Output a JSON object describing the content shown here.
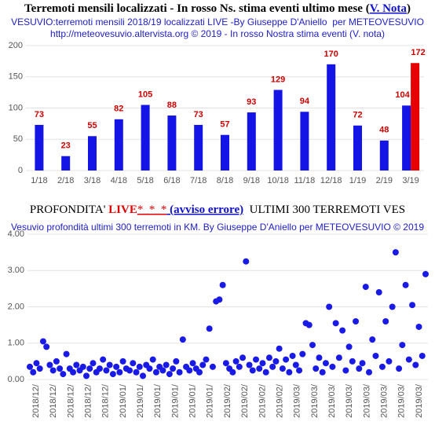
{
  "chart_data": [
    {
      "type": "bar",
      "title": [
        "Terremoti mensili localizzati - In rosso Ns. stima eventi ultimo mese (",
        "V. Nota",
        ")"
      ],
      "subtitle": [
        "VESUVIO:terremoti mensili 2018/19 localizzati LIVE -By Giuseppe D'Aniello  per METEOVESUVIO",
        "http://meteovesuvio.altervista.org © 2019 - In rosso Nostra stima eventi (V. nota)"
      ],
      "categories": [
        "1/18",
        "2/18",
        "3/18",
        "4/18",
        "5/18",
        "6/18",
        "7/18",
        "8/18",
        "9/18",
        "10/18",
        "11/18",
        "12/18",
        "1/19",
        "2/19",
        "3/19"
      ],
      "series": [
        {
          "color": "#1414e6",
          "values": [
            73,
            23,
            55,
            82,
            105,
            88,
            73,
            57,
            93,
            129,
            94,
            170,
            72,
            48,
            104
          ]
        },
        {
          "color": "#e60000",
          "values": [
            null,
            null,
            null,
            null,
            null,
            null,
            null,
            null,
            null,
            null,
            null,
            null,
            null,
            null,
            172
          ]
        }
      ],
      "label_color": "#cc0000",
      "ylim": [
        0,
        200
      ],
      "yticks": [
        0,
        50,
        100,
        150,
        200
      ],
      "grid": true
    },
    {
      "type": "scatter",
      "title": [
        "PROFONDITA' ",
        "LIVE",
        "*_*_*",
        " (avviso errore)",
        "  ULTIMI 300 TERREMOTI VES"
      ],
      "subtitle": [
        "Vesuvio profondità ultimi 300 terremoti in KM. By Giuseppe D'Aniello per METEOVESUVIO © 2019"
      ],
      "categories": [
        "2018/12/",
        "2018/12/",
        "2018/12/",
        "2018/12/",
        "2018/12/",
        "2019/01/",
        "2019/01/",
        "2019/01/",
        "2019/01/",
        "2019/01/",
        "2019/01/",
        "2019/02/",
        "2019/02/",
        "2019/02/",
        "2019/02/",
        "2019/03/",
        "2019/03/",
        "2019/03/",
        "2019/03/",
        "2019/03/",
        "2019/03/",
        "2019/03/",
        "2019/03/"
      ],
      "color": "#1a1ae6",
      "values": [
        0.35,
        0.2,
        0.45,
        0.3,
        1.05,
        0.9,
        0.4,
        0.25,
        0.5,
        0.3,
        0.15,
        0.7,
        0.3,
        0.2,
        0.4,
        0.25,
        0.35,
        0.1,
        0.3,
        0.45,
        0.2,
        0.3,
        0.55,
        0.25,
        0.4,
        0.15,
        0.35,
        0.2,
        0.5,
        0.3,
        0.25,
        0.45,
        0.2,
        0.35,
        0.1,
        0.4,
        0.3,
        0.55,
        0.2,
        0.35,
        0.25,
        0.4,
        0.15,
        0.3,
        0.5,
        0.2,
        1.1,
        0.35,
        0.25,
        0.45,
        0.3,
        0.2,
        0.4,
        0.55,
        1.4,
        0.35,
        2.15,
        2.2,
        2.6,
        0.45,
        0.3,
        0.2,
        0.5,
        0.35,
        0.6,
        3.25,
        0.4,
        0.25,
        0.55,
        0.3,
        0.45,
        0.2,
        0.6,
        0.35,
        0.5,
        0.85,
        0.3,
        0.55,
        0.2,
        0.65,
        0.4,
        0.25,
        0.7,
        1.55,
        1.5,
        0.95,
        0.3,
        0.6,
        0.2,
        0.45,
        2.0,
        0.35,
        1.55,
        0.6,
        1.35,
        0.25,
        0.9,
        0.5,
        1.6,
        0.3,
        0.45,
        2.55,
        0.2,
        1.1,
        0.65,
        2.4,
        0.35,
        1.6,
        0.5,
        2.0,
        3.5,
        0.3,
        0.95,
        2.6,
        0.55,
        2.05,
        0.4,
        1.45,
        0.65,
        2.9
      ],
      "ylim": [
        0,
        4
      ],
      "yticks": [
        {
          "value": 0,
          "label": "0.00"
        },
        {
          "value": 1,
          "label": "1.00"
        },
        {
          "value": 2,
          "label": "2.00"
        },
        {
          "value": 3,
          "label": "3.00"
        },
        {
          "value": 4,
          "label": "4.00"
        }
      ],
      "grid": true
    }
  ]
}
